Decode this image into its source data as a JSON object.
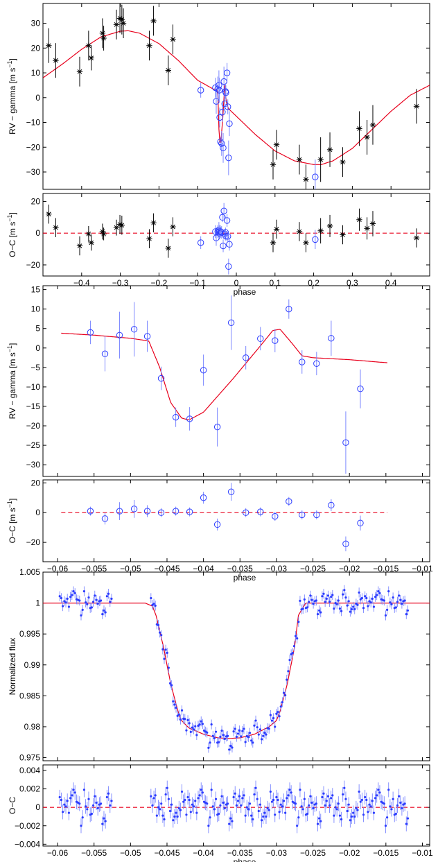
{
  "colors": {
    "model": "#e8001c",
    "rv_black": "#000000",
    "rv_blue": "#2b3cff",
    "errorbar_blue": "#7a86ff",
    "zero_line": "#e8001c"
  },
  "chart_data": [
    {
      "id": "rv-full",
      "type": "scatter",
      "ylabel": "RV − gamma [m s",
      "ylabel_sup": "−1",
      "ylabel_tail": "]",
      "xlim": [
        -0.5,
        0.5
      ],
      "ylim": [
        -37,
        38
      ],
      "yticks": [
        -30,
        -20,
        -10,
        0,
        10,
        20,
        30
      ],
      "ytick_labels": [
        "−30",
        "−20",
        "−10",
        "0",
        "10",
        "20",
        "30"
      ],
      "series": [
        {
          "name": "RV data (black)",
          "marker": "star",
          "color": "#000000",
          "x": [
            -0.485,
            -0.467,
            -0.405,
            -0.382,
            -0.375,
            -0.346,
            -0.343,
            -0.31,
            -0.301,
            -0.296,
            -0.292,
            -0.225,
            -0.214,
            -0.176,
            -0.164,
            0.095,
            0.104,
            0.163,
            0.18,
            0.218,
            0.242,
            0.275,
            0.318,
            0.338,
            0.353,
            0.466
          ],
          "y": [
            21,
            15,
            10.5,
            21,
            16,
            26,
            24,
            29.5,
            32,
            31.5,
            30,
            21,
            31,
            11,
            23.5,
            -27,
            -19,
            -25,
            -33,
            -25,
            -21,
            -26,
            -12.5,
            -16,
            -11,
            -3.5
          ],
          "err": [
            7,
            7,
            6,
            6,
            5,
            6,
            5,
            6,
            6,
            6,
            6,
            6,
            6,
            6,
            6,
            6,
            6,
            6,
            6,
            9,
            7,
            6,
            7,
            7,
            8,
            7
          ]
        },
        {
          "name": "RV in transit (blue)",
          "marker": "circle",
          "color": "#2b3cff",
          "x": [
            -0.092,
            -0.054,
            -0.052,
            -0.048,
            -0.045,
            -0.044,
            -0.043,
            -0.041,
            -0.038,
            -0.036,
            -0.034,
            -0.032,
            -0.03,
            -0.028,
            -0.027,
            -0.024,
            -0.022,
            -0.02,
            -0.018,
            0.204
          ],
          "y": [
            3,
            4,
            -1.5,
            3.5,
            5,
            3,
            -8,
            -17.8,
            -18.5,
            -5.8,
            -20.3,
            6.5,
            -2.5,
            2.5,
            2,
            10,
            -3.7,
            -24.3,
            -10.5,
            -32
          ],
          "err": [
            3,
            4,
            5,
            5,
            6,
            5,
            4,
            2,
            5,
            4,
            6,
            6,
            3,
            3,
            3,
            4,
            3,
            7,
            5,
            7
          ]
        }
      ],
      "model": {
        "x": [
          -0.5,
          -0.45,
          -0.4,
          -0.35,
          -0.3,
          -0.28,
          -0.25,
          -0.2,
          -0.15,
          -0.1,
          -0.06,
          -0.048,
          -0.044,
          -0.04,
          -0.035,
          -0.03,
          -0.026,
          -0.02,
          0.0,
          0.05,
          0.1,
          0.15,
          0.2,
          0.22,
          0.25,
          0.3,
          0.35,
          0.4,
          0.45,
          0.5
        ],
        "y": [
          8,
          13.5,
          19.5,
          24.5,
          26.8,
          27,
          26,
          21.8,
          15,
          7,
          3.5,
          3,
          -18,
          -18,
          -8,
          5,
          -2,
          -4.5,
          -7.5,
          -15,
          -21.5,
          -25.5,
          -27,
          -27,
          -25.5,
          -20.5,
          -13,
          -5.5,
          1,
          5
        ]
      }
    },
    {
      "id": "oc-full",
      "type": "scatter",
      "ylabel": "O−C [m s",
      "ylabel_sup": "−1",
      "ylabel_tail": "]",
      "xlabel": "phase",
      "xlim": [
        -0.5,
        0.5
      ],
      "ylim": [
        -27,
        25
      ],
      "yticks": [
        -20,
        0,
        20
      ],
      "ytick_labels": [
        "−20",
        "0",
        "20"
      ],
      "xticks": [
        -0.4,
        -0.3,
        -0.2,
        -0.1,
        0,
        0.1,
        0.2,
        0.3,
        0.4
      ],
      "xtick_labels": [
        "−0.4",
        "−0.3",
        "−0.2",
        "−0.1",
        "0",
        "0.1",
        "0.2",
        "0.3",
        "0.4"
      ],
      "series": [
        {
          "name": "O-C black",
          "marker": "star",
          "color": "#000000",
          "x": [
            -0.485,
            -0.467,
            -0.405,
            -0.382,
            -0.375,
            -0.346,
            -0.343,
            -0.31,
            -0.301,
            -0.296,
            -0.225,
            -0.214,
            -0.176,
            -0.164,
            0.095,
            0.104,
            0.163,
            0.18,
            0.218,
            0.242,
            0.275,
            0.318,
            0.338,
            0.353,
            0.466
          ],
          "y": [
            12,
            3.5,
            -8,
            -0.5,
            -6,
            1,
            -0.5,
            3.5,
            5.5,
            5,
            -3.5,
            6.5,
            -9.5,
            4,
            -6,
            2.5,
            1,
            -6,
            1.5,
            4.5,
            -1,
            8.5,
            3,
            6,
            -3
          ],
          "err": [
            6,
            6,
            6,
            5,
            5,
            5,
            4,
            5,
            6,
            6,
            6,
            6,
            6,
            6,
            6,
            6,
            6,
            6,
            8,
            7,
            6,
            7,
            7,
            8,
            6
          ]
        },
        {
          "name": "O-C blue",
          "marker": "circle",
          "color": "#2b3cff",
          "x": [
            -0.092,
            -0.054,
            -0.052,
            -0.048,
            -0.045,
            -0.044,
            -0.043,
            -0.041,
            -0.038,
            -0.036,
            -0.034,
            -0.032,
            -0.03,
            -0.028,
            -0.027,
            -0.024,
            -0.022,
            -0.02,
            -0.018,
            0.204
          ],
          "y": [
            -6,
            1,
            -3,
            1,
            2,
            1,
            0,
            1,
            0.5,
            10,
            -8,
            14,
            -0.5,
            0.5,
            -2,
            8,
            -2,
            -21,
            -7,
            -4
          ],
          "err": [
            4,
            4,
            5,
            4,
            5,
            4,
            4,
            4,
            4,
            3,
            4,
            5,
            3,
            3,
            3,
            4,
            3,
            5,
            4,
            6
          ]
        }
      ]
    },
    {
      "id": "rv-zoom",
      "type": "scatter",
      "ylabel": "RV − gamma [m s",
      "ylabel_sup": "−1",
      "ylabel_tail": "]",
      "xlim": [
        -0.062,
        -0.009
      ],
      "ylim": [
        -33,
        16
      ],
      "yticks": [
        -30,
        -25,
        -20,
        -15,
        -10,
        -5,
        0,
        5,
        10,
        15
      ],
      "ytick_labels": [
        "−30",
        "−25",
        "−20",
        "−15",
        "−10",
        "−5",
        "0",
        "5",
        "10",
        "15"
      ],
      "series": [
        {
          "name": "RV zoom",
          "marker": "circle",
          "color": "#2b3cff",
          "x": [
            -0.0555,
            -0.0535,
            -0.0515,
            -0.0495,
            -0.0477,
            -0.0458,
            -0.0438,
            -0.0419,
            -0.04,
            -0.0381,
            -0.0362,
            -0.0342,
            -0.0322,
            -0.0302,
            -0.0283,
            -0.0265,
            -0.0245,
            -0.0225,
            -0.0205,
            -0.0185
          ],
          "y": [
            4,
            -1.5,
            3.3,
            4.8,
            3,
            -7.8,
            -17.8,
            -18.2,
            -5.7,
            -20.3,
            6.5,
            -2.5,
            2.4,
            1.9,
            10,
            -3.6,
            -4,
            2.5,
            -24.3,
            -10.5
          ],
          "err": [
            3,
            4.5,
            6,
            7,
            4,
            3,
            2.5,
            3,
            4,
            5,
            7,
            3,
            3,
            3,
            2.5,
            3,
            3,
            4.5,
            8,
            5
          ]
        }
      ],
      "model": {
        "x": [
          -0.0595,
          -0.055,
          -0.05,
          -0.0475,
          -0.046,
          -0.0445,
          -0.043,
          -0.042,
          -0.04,
          -0.036,
          -0.032,
          -0.0305,
          -0.0295,
          -0.028,
          -0.0265,
          -0.025,
          -0.02,
          -0.0148
        ],
        "y": [
          3.8,
          3.3,
          2.5,
          1.8,
          -5,
          -14,
          -18,
          -18.5,
          -16.5,
          -8,
          1,
          4.5,
          4.8,
          1.5,
          -2,
          -2.5,
          -3,
          -3.8
        ]
      }
    },
    {
      "id": "oc-zoom",
      "type": "scatter",
      "ylabel": "O−C [m s",
      "ylabel_sup": "−1",
      "ylabel_tail": "]",
      "xlabel": "phase",
      "xlim": [
        -0.062,
        -0.009
      ],
      "ylim": [
        -33,
        22
      ],
      "yticks": [
        -20,
        0,
        20
      ],
      "ytick_labels": [
        "−20",
        "0",
        "20"
      ],
      "xticks": [
        -0.06,
        -0.055,
        -0.05,
        -0.045,
        -0.04,
        -0.035,
        -0.03,
        -0.025,
        -0.02,
        -0.015,
        -0.01
      ],
      "xtick_labels": [
        "−0.06",
        "−0.055",
        "−0.05",
        "−0.045",
        "−0.04",
        "−0.035",
        "−0.03",
        "−0.025",
        "−0.02",
        "−0.015",
        "−0.01"
      ],
      "zero_line_range": [
        -0.0595,
        -0.0148
      ],
      "series": [
        {
          "name": "O-C zoom",
          "marker": "circle",
          "color": "#2b3cff",
          "x": [
            -0.0555,
            -0.0535,
            -0.0515,
            -0.0495,
            -0.0477,
            -0.0458,
            -0.0438,
            -0.0419,
            -0.04,
            -0.0381,
            -0.0362,
            -0.0342,
            -0.0322,
            -0.0302,
            -0.0283,
            -0.0265,
            -0.0245,
            -0.0225,
            -0.0205,
            -0.0185
          ],
          "y": [
            1,
            -4,
            1,
            2.5,
            1,
            0,
            1,
            0.5,
            10,
            -8,
            14,
            0,
            0.5,
            -2.5,
            7.5,
            -1.5,
            -1.5,
            5,
            -21,
            -7
          ],
          "err": [
            3,
            4,
            6,
            6,
            4,
            3,
            3,
            3,
            4,
            4,
            6,
            3,
            3,
            3,
            3,
            3,
            3,
            4,
            5,
            5
          ]
        }
      ]
    },
    {
      "id": "flux",
      "type": "scatter",
      "ylabel": "Normalized flux",
      "xlim": [
        -0.062,
        -0.009
      ],
      "ylim": [
        0.9745,
        1.005
      ],
      "yticks": [
        0.975,
        0.98,
        0.985,
        0.99,
        0.995,
        1,
        1.005
      ],
      "ytick_labels": [
        "0.975",
        "0.98",
        "0.985",
        "0.99",
        "0.995",
        "1",
        "1.005"
      ],
      "series": [
        {
          "name": "photometry",
          "marker": "dot",
          "color": "#2b3cff"
        }
      ],
      "data_model": "flux = model(phase) + residual",
      "model": {
        "x": [
          -0.0625,
          -0.048,
          -0.047,
          -0.0465,
          -0.0455,
          -0.0445,
          -0.0435,
          -0.043,
          -0.042,
          -0.04,
          -0.038,
          -0.0365,
          -0.035,
          -0.033,
          -0.031,
          -0.03,
          -0.0295,
          -0.0285,
          -0.0275,
          -0.027,
          -0.026,
          -0.0087
        ],
        "y": [
          1,
          1,
          0.9995,
          0.998,
          0.993,
          0.987,
          0.9825,
          0.981,
          0.9798,
          0.9788,
          0.9782,
          0.9781,
          0.9782,
          0.9788,
          0.98,
          0.981,
          0.9825,
          0.987,
          0.993,
          0.998,
          1,
          1
        ]
      }
    },
    {
      "id": "oc-flux",
      "type": "scatter",
      "ylabel": "O−C",
      "xlabel": "phase",
      "xlim": [
        -0.062,
        -0.009
      ],
      "ylim": [
        -0.0042,
        0.0046
      ],
      "yticks": [
        -0.004,
        -0.002,
        0,
        0.002,
        0.004
      ],
      "ytick_labels": [
        "−0.004",
        "−0.002",
        "0",
        "0.002",
        "0.004"
      ],
      "xticks": [
        -0.06,
        -0.055,
        -0.05,
        -0.045,
        -0.04,
        -0.035,
        -0.03,
        -0.025,
        -0.02,
        -0.015,
        -0.01
      ],
      "xtick_labels": [
        "−0.06",
        "−0.055",
        "−0.05",
        "−0.045",
        "−0.04",
        "−0.035",
        "−0.03",
        "−0.025",
        "−0.02",
        "−0.015",
        "−0.01"
      ],
      "series": [
        {
          "name": "photometry residuals",
          "marker": "dot",
          "color": "#2b3cff"
        }
      ],
      "segments": [
        [
          -0.0597,
          -0.0526
        ],
        [
          -0.0472,
          -0.012
        ]
      ],
      "n_points": 210,
      "residuals": [
        0.0011,
        -0.0009,
        0.0003,
        0.0019,
        -0.0006,
        0.0012,
        -0.0002,
        0.0008,
        -0.0013,
        0.0004,
        0.0016,
        -0.001,
        0.0002,
        0.0009,
        -0.0005,
        0.0014,
        -0.0018,
        0.0006,
        -0.0001,
        0.001,
        -0.0008,
        0.0003,
        0.0021,
        -0.0012,
        0.0005,
        -0.0003,
        0.0013,
        -0.0007,
        0.0001,
        0.0009,
        -0.0015,
        0.0004,
        0.0017,
        -0.0009,
        0.0002,
        0.0007,
        -0.0004,
        0.0011,
        -0.002,
        0.0006,
        0.0,
        0.0012,
        -0.0006,
        0.0003,
        0.0015,
        -0.0011,
        0.0008,
        -0.0002,
        0.0005,
        0.001,
        -0.0014,
        0.0002,
        0.0019,
        -0.0008,
        0.0004,
        -0.0001,
        0.0013,
        -0.001,
        0.0007,
        0.0001
      ],
      "err": 0.0008
    }
  ]
}
